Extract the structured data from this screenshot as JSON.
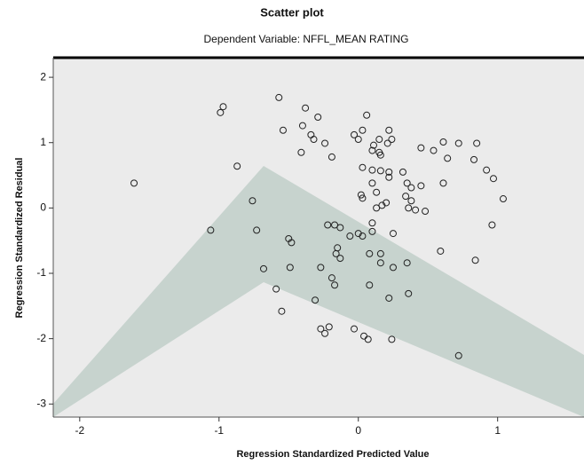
{
  "chart_data": {
    "type": "scatter",
    "title": "Scatter plot",
    "subtitle": "Dependent Variable: NFFL_MEAN RATING",
    "x_label": "Regression Standardized Predicted Value",
    "y_label": "Regression Standardized Residual",
    "xlim": [
      -2.19,
      1.62
    ],
    "ylim": [
      -3.2,
      2.3
    ],
    "xticks": [
      -2,
      -1,
      0,
      1
    ],
    "yticks": [
      2,
      1,
      0,
      -1,
      -2,
      -3
    ],
    "color": "#222222",
    "background": "#ebebeb",
    "x": [
      -1.61,
      -1.06,
      -0.99,
      -0.97,
      -0.87,
      -0.76,
      -0.73,
      -0.68,
      -0.59,
      -0.57,
      -0.54,
      -0.55,
      -0.48,
      -0.5,
      -0.49,
      -0.41,
      -0.4,
      -0.38,
      -0.34,
      -0.32,
      -0.29,
      -0.27,
      -0.31,
      -0.27,
      -0.24,
      -0.21,
      -0.19,
      -0.17,
      -0.22,
      -0.16,
      -0.15,
      -0.13,
      -0.19,
      -0.13,
      -0.06,
      0.0,
      -0.03,
      0.04,
      0.07,
      0.03,
      -0.03,
      0.0,
      0.06,
      0.1,
      0.11,
      0.15,
      0.16,
      0.21,
      0.24,
      0.03,
      0.1,
      0.16,
      0.22,
      0.32,
      0.35,
      0.38,
      0.45,
      0.34,
      0.38,
      0.1,
      0.02,
      0.03,
      0.13,
      0.22,
      0.13,
      0.17,
      0.2,
      0.03,
      0.1,
      0.08,
      0.16,
      0.08,
      0.16,
      0.22,
      0.25,
      0.36,
      0.35,
      0.36,
      0.41,
      0.48,
      0.45,
      0.54,
      0.61,
      0.59,
      0.61,
      0.64,
      0.72,
      0.83,
      0.85,
      0.84,
      0.92,
      0.97,
      1.04,
      0.96,
      0.22,
      0.1,
      0.25,
      0.72,
      0.24,
      0.15,
      -0.24,
      -0.17
    ],
    "values": [
      0.38,
      -0.34,
      1.46,
      1.55,
      0.64,
      0.11,
      -0.34,
      -0.93,
      -1.24,
      1.69,
      1.19,
      -1.58,
      -0.53,
      -0.47,
      -0.91,
      0.85,
      1.26,
      1.53,
      1.12,
      1.05,
      1.39,
      -0.91,
      -1.41,
      -1.85,
      -1.92,
      -1.82,
      -1.07,
      -1.18,
      -0.26,
      -0.7,
      -0.61,
      -0.77,
      0.78,
      -0.3,
      -0.43,
      -0.39,
      -1.85,
      -1.96,
      -2.01,
      1.19,
      1.12,
      1.05,
      1.42,
      0.88,
      0.96,
      0.85,
      0.81,
      0.99,
      1.05,
      0.62,
      0.58,
      0.57,
      0.55,
      0.55,
      0.38,
      0.31,
      0.34,
      0.18,
      0.11,
      0.38,
      0.2,
      0.15,
      0.24,
      0.47,
      0.0,
      0.04,
      0.08,
      -0.43,
      -0.36,
      -0.7,
      -0.7,
      -1.18,
      -0.84,
      -1.38,
      -0.91,
      -1.31,
      -0.84,
      0.0,
      -0.03,
      -0.05,
      0.92,
      0.88,
      1.01,
      -0.66,
      0.38,
      0.76,
      0.99,
      0.74,
      0.99,
      -0.8,
      0.58,
      0.45,
      0.14,
      -0.26,
      1.19,
      -0.23,
      -0.39,
      -2.26,
      -2.01,
      1.05,
      0.99,
      -0.26
    ]
  }
}
